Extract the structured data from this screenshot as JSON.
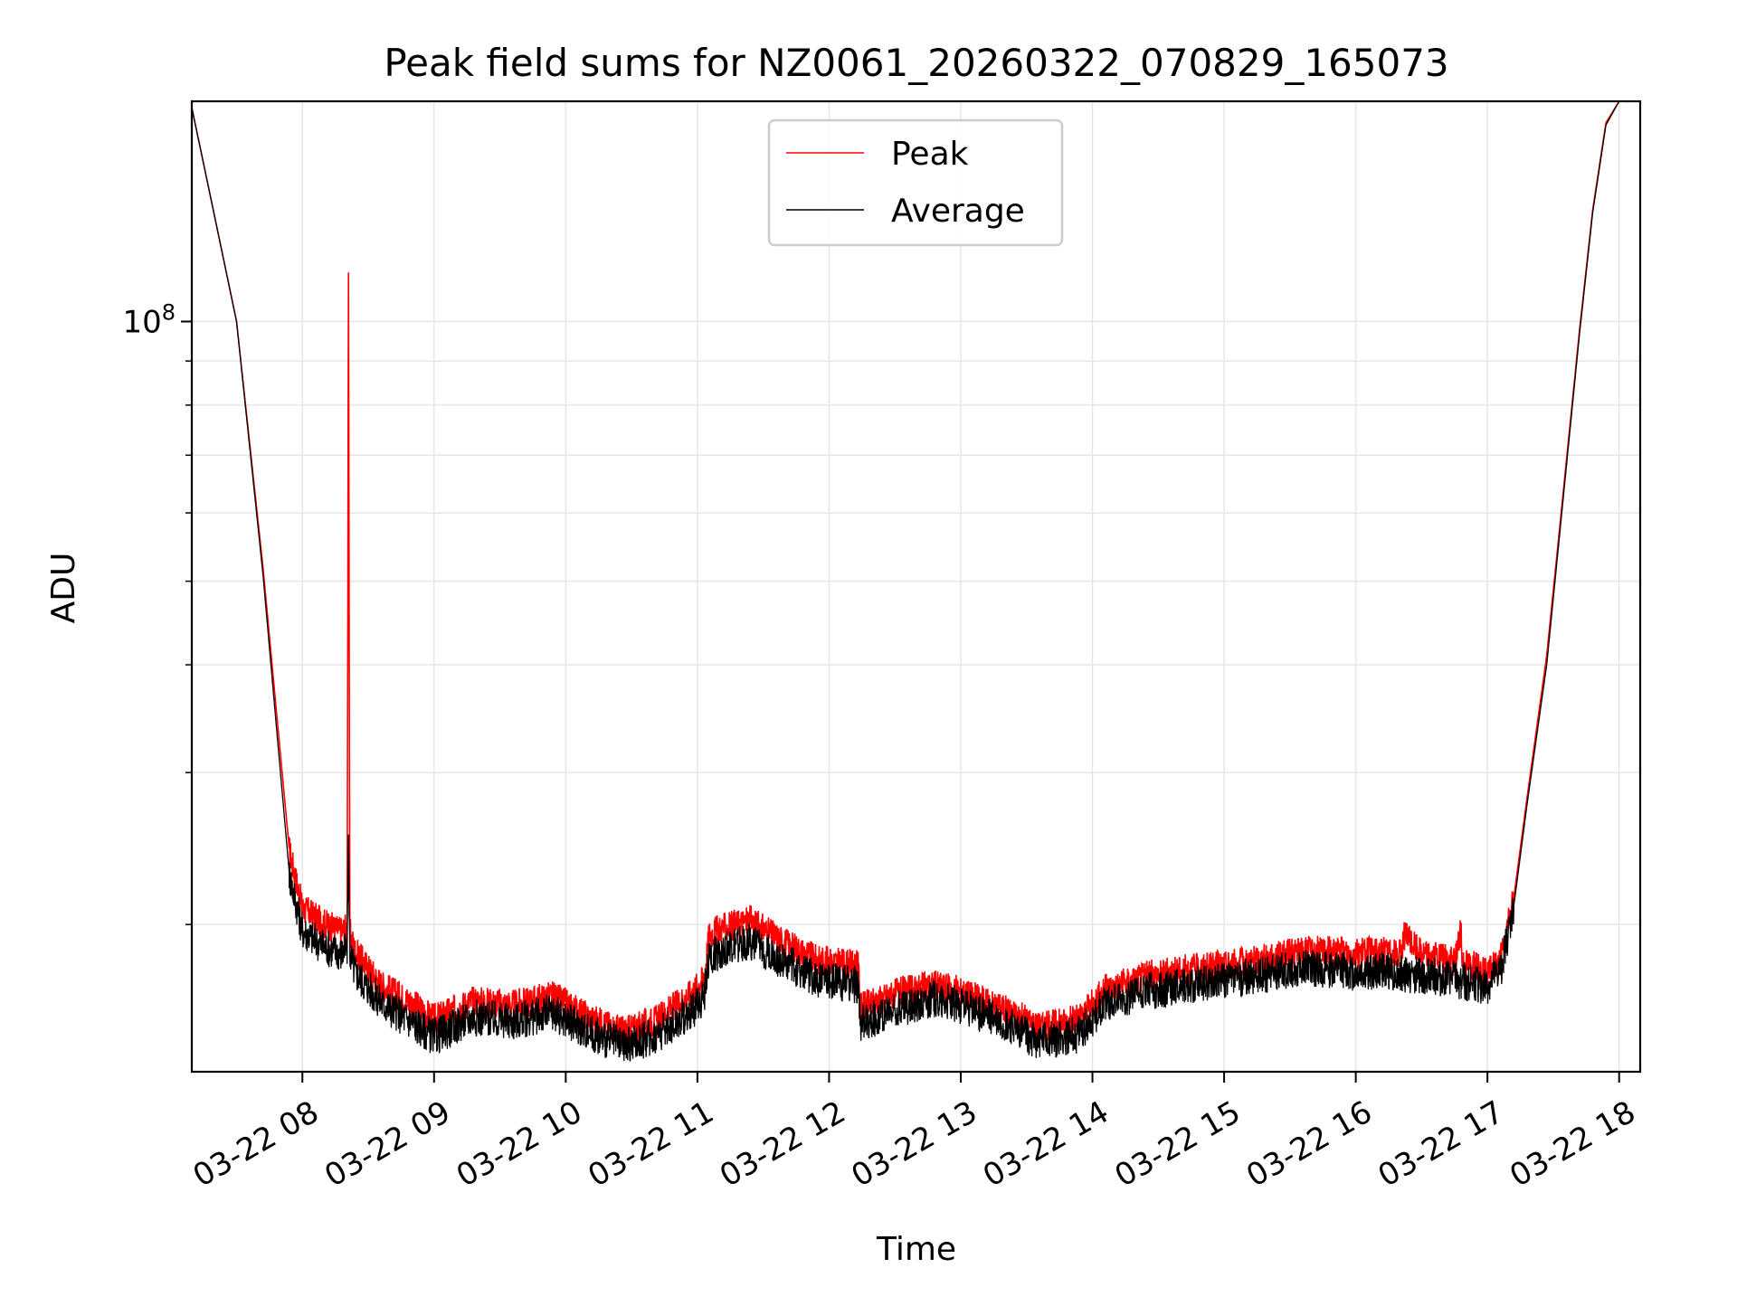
{
  "chart_data": {
    "type": "line",
    "title": "Peak field sums for NZ0061_20260322_070829_165073",
    "xlabel": "Time",
    "ylabel": "ADU",
    "y_scale": "log",
    "ylim": [
      13500000,
      180000000
    ],
    "grid": true,
    "legend_position": "top-center",
    "x_ticks": [
      {
        "label": "03-22 08",
        "hour": 8
      },
      {
        "label": "03-22 09",
        "hour": 9
      },
      {
        "label": "03-22 10",
        "hour": 10
      },
      {
        "label": "03-22 11",
        "hour": 11
      },
      {
        "label": "03-22 12",
        "hour": 12
      },
      {
        "label": "03-22 13",
        "hour": 13
      },
      {
        "label": "03-22 14",
        "hour": 14
      },
      {
        "label": "03-22 15",
        "hour": 15
      },
      {
        "label": "03-22 16",
        "hour": 16
      },
      {
        "label": "03-22 17",
        "hour": 17
      },
      {
        "label": "03-22 18",
        "hour": 18
      }
    ],
    "xlim_hours": [
      7.16,
      18.16
    ],
    "y_ticks": [
      {
        "label_base": "10",
        "label_exp": "8",
        "value": 100000000
      }
    ],
    "series": [
      {
        "name": "Peak",
        "color": "#ff0000",
        "hours": [
          7.15,
          7.3,
          7.5,
          7.7,
          7.9,
          8.0,
          8.15,
          8.3,
          8.34,
          8.35,
          8.36,
          8.4,
          8.6,
          8.8,
          9.0,
          9.3,
          9.6,
          9.9,
          10.2,
          10.45,
          10.7,
          10.95,
          11.05,
          11.09,
          11.2,
          11.4,
          11.6,
          11.9,
          12.22,
          12.24,
          12.5,
          12.8,
          13.0,
          13.3,
          13.6,
          13.9,
          14.1,
          14.4,
          14.7,
          15.0,
          15.3,
          15.6,
          15.8,
          16.0,
          16.2,
          16.35,
          16.36,
          16.5,
          16.75,
          16.8,
          16.81,
          16.9,
          17.0,
          17.1,
          17.2,
          17.3,
          17.45,
          17.55,
          17.7,
          17.8,
          17.9,
          18.0,
          18.05
        ],
        "values": [
          180000000,
          140000000,
          100000000,
          52000000,
          24500000,
          21000000,
          20200000,
          19700000,
          20000000,
          114000000,
          19700000,
          18700000,
          17100000,
          16400000,
          15600000,
          16400000,
          16200000,
          16600000,
          15600000,
          15100000,
          15600000,
          16700000,
          17400000,
          19600000,
          19900000,
          20300000,
          19400000,
          18300000,
          18000000,
          16100000,
          16700000,
          17100000,
          16800000,
          16100000,
          15300000,
          15600000,
          16900000,
          17500000,
          17800000,
          18000000,
          18300000,
          18700000,
          18700000,
          18600000,
          18700000,
          18500000,
          19600000,
          18600000,
          18200000,
          19800000,
          18200000,
          18000000,
          17600000,
          18300000,
          21500000,
          28000000,
          41000000,
          58000000,
          98000000,
          135000000,
          170000000,
          180000000,
          180000000
        ]
      },
      {
        "name": "Average",
        "color": "#000000",
        "hours": [
          7.15,
          7.3,
          7.5,
          7.7,
          7.9,
          8.0,
          8.15,
          8.3,
          8.34,
          8.35,
          8.36,
          8.4,
          8.6,
          8.8,
          9.0,
          9.3,
          9.6,
          9.9,
          10.2,
          10.45,
          10.7,
          10.95,
          11.05,
          11.09,
          11.2,
          11.4,
          11.6,
          11.9,
          12.22,
          12.24,
          12.5,
          12.8,
          13.0,
          13.3,
          13.6,
          13.9,
          14.1,
          14.4,
          14.7,
          15.0,
          15.3,
          15.6,
          15.8,
          16.0,
          16.2,
          16.4,
          16.6,
          16.8,
          17.0,
          17.1,
          17.2,
          17.3,
          17.45,
          17.55,
          17.7,
          17.8,
          17.9,
          18.0,
          18.05
        ],
        "values": [
          180000000,
          140000000,
          100000000,
          51000000,
          23000000,
          19800000,
          19000000,
          18600000,
          18800000,
          25000000,
          18600000,
          17700000,
          16300000,
          15600000,
          14900000,
          15700000,
          15500000,
          15900000,
          15000000,
          14500000,
          15000000,
          15900000,
          16600000,
          18400000,
          18800000,
          19200000,
          18400000,
          17400000,
          17100000,
          15400000,
          16000000,
          16500000,
          16200000,
          15500000,
          14700000,
          15000000,
          16300000,
          16800000,
          17100000,
          17300000,
          17600000,
          17900000,
          17800000,
          17700000,
          17800000,
          17600000,
          17500000,
          17300000,
          17000000,
          17800000,
          21000000,
          27500000,
          40000000,
          57000000,
          97000000,
          134000000,
          169000000,
          180000000,
          180000000
        ]
      }
    ]
  }
}
